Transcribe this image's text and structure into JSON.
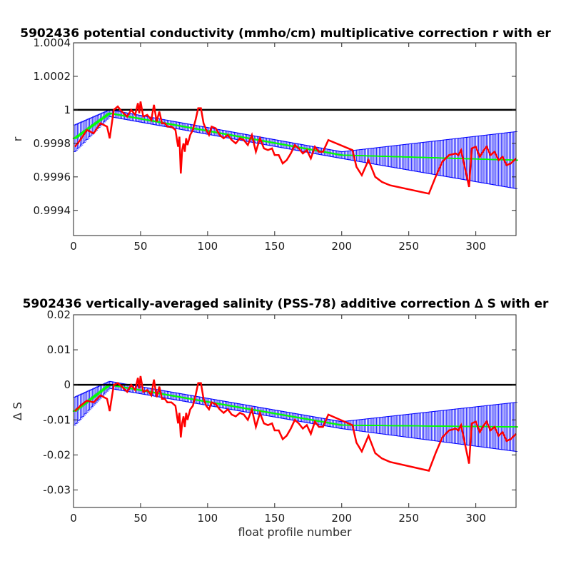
{
  "chart_data": [
    {
      "type": "line",
      "title": "5902436 potential conductivity (mmho/cm) multiplicative correction r with er",
      "xlabel": "",
      "ylabel": "r",
      "xlim": [
        0,
        330
      ],
      "ylim": [
        0.99925,
        1.0004
      ],
      "xticks": [
        0,
        50,
        100,
        150,
        200,
        250,
        300
      ],
      "yticks": [
        0.9994,
        0.9996,
        0.9998,
        1,
        1.0002,
        1.0004
      ],
      "ytick_labels": [
        "0.9994",
        "0.9996",
        "0.9998",
        "1",
        "1.0002",
        "1.0004"
      ],
      "reference_line": 1,
      "colors": {
        "mapped": "#ff0000",
        "fit": "#00ff00",
        "error_bars": "#0000ff",
        "reference": "#000000"
      },
      "series": [
        {
          "role": "mapped",
          "x": [
            1,
            5,
            10,
            15,
            20,
            25,
            27,
            30,
            33,
            36,
            40,
            43,
            46,
            48,
            49,
            50,
            52,
            55,
            58,
            60,
            62,
            64,
            66,
            68,
            70,
            73,
            76,
            78,
            79,
            80,
            81,
            82,
            83,
            84,
            85,
            87,
            89,
            91,
            93,
            95,
            97,
            99,
            101,
            103,
            106,
            109,
            112,
            115,
            118,
            121,
            124,
            127,
            130,
            133,
            136,
            139,
            142,
            145,
            148,
            150,
            153,
            156,
            159,
            162,
            165,
            168,
            171,
            174,
            177,
            180,
            183,
            186,
            190,
            208,
            211,
            215,
            220,
            225,
            230,
            236,
            265,
            270,
            275,
            280,
            285,
            287,
            289,
            292,
            295,
            297,
            300,
            303,
            306,
            308,
            311,
            314,
            317,
            320,
            323,
            326,
            330
          ],
          "y": [
            0.99978,
            0.99982,
            0.99988,
            0.99986,
            0.99992,
            0.9999,
            0.99983,
            1.0,
            1.00002,
            0.99999,
            0.99996,
            1.0,
            0.99997,
            1.00004,
            0.99998,
            1.00005,
            0.99996,
            0.99997,
            0.99994,
            1.00003,
            0.99993,
            0.99999,
            0.99992,
            0.99992,
            0.9999,
            0.9999,
            0.99988,
            0.99978,
            0.99984,
            0.99962,
            0.99976,
            0.9998,
            0.99975,
            0.99983,
            0.99979,
            0.99985,
            0.99988,
            0.99994,
            1.00001,
            1.00001,
            0.99992,
            0.99988,
            0.99985,
            0.9999,
            0.99989,
            0.99985,
            0.99983,
            0.99985,
            0.99982,
            0.9998,
            0.99983,
            0.99982,
            0.99979,
            0.99985,
            0.99975,
            0.99983,
            0.99977,
            0.99976,
            0.99977,
            0.99973,
            0.99973,
            0.99968,
            0.9997,
            0.99974,
            0.99979,
            0.99977,
            0.99974,
            0.99976,
            0.99971,
            0.99978,
            0.99975,
            0.99975,
            0.99982,
            0.99976,
            0.99966,
            0.99961,
            0.9997,
            0.9996,
            0.99957,
            0.99955,
            0.9995,
            0.9996,
            0.99969,
            0.99973,
            0.99974,
            0.99973,
            0.99976,
            0.99965,
            0.99954,
            0.99977,
            0.99978,
            0.99972,
            0.99976,
            0.99978,
            0.99973,
            0.99975,
            0.9997,
            0.99972,
            0.99967,
            0.99968,
            0.99971
          ]
        },
        {
          "role": "fit",
          "x": [
            1,
            27,
            200,
            330
          ],
          "y": [
            0.99983,
            0.99998,
            0.99973,
            0.9997
          ],
          "err": [
            8e-05,
            2e-05,
            2e-05,
            0.00017
          ]
        }
      ]
    },
    {
      "type": "line",
      "title": "5902436 vertically-averaged salinity (PSS-78) additive correction ∆ S with er",
      "xlabel": "float profile number",
      "ylabel": "∆ S",
      "xlim": [
        0,
        330
      ],
      "ylim": [
        -0.035,
        0.02
      ],
      "xticks": [
        0,
        50,
        100,
        150,
        200,
        250,
        300
      ],
      "yticks": [
        -0.03,
        -0.02,
        -0.01,
        0,
        0.01,
        0.02
      ],
      "ytick_labels": [
        "-0.03",
        "-0.02",
        "-0.01",
        "0",
        "0.01",
        "0.02"
      ],
      "reference_line": 0,
      "colors": {
        "mapped": "#ff0000",
        "fit": "#00ff00",
        "error_bars": "#0000ff",
        "reference": "#000000"
      },
      "series": [
        {
          "role": "mapped",
          "x": [
            1,
            5,
            10,
            15,
            20,
            25,
            27,
            30,
            33,
            36,
            40,
            43,
            46,
            48,
            49,
            50,
            52,
            55,
            58,
            60,
            62,
            64,
            66,
            68,
            70,
            73,
            76,
            78,
            79,
            80,
            81,
            82,
            83,
            84,
            85,
            87,
            89,
            91,
            93,
            95,
            97,
            99,
            101,
            103,
            106,
            109,
            112,
            115,
            118,
            121,
            124,
            127,
            130,
            133,
            136,
            139,
            142,
            145,
            148,
            150,
            153,
            156,
            159,
            162,
            165,
            168,
            171,
            174,
            177,
            180,
            183,
            186,
            190,
            208,
            211,
            215,
            220,
            225,
            230,
            236,
            265,
            270,
            275,
            280,
            285,
            287,
            289,
            292,
            295,
            297,
            300,
            303,
            306,
            308,
            311,
            314,
            317,
            320,
            323,
            326,
            330
          ],
          "y": [
            -0.0075,
            -0.006,
            -0.0045,
            -0.005,
            -0.003,
            -0.004,
            -0.0075,
            0.0,
            0.0005,
            -0.0005,
            -0.002,
            0.0,
            -0.0015,
            0.002,
            -0.001,
            0.0025,
            -0.002,
            -0.0015,
            -0.003,
            0.0015,
            -0.0035,
            -0.0005,
            -0.004,
            -0.004,
            -0.005,
            -0.005,
            -0.006,
            -0.011,
            -0.008,
            -0.015,
            -0.011,
            -0.009,
            -0.012,
            -0.008,
            -0.01,
            -0.007,
            -0.006,
            -0.003,
            0.0005,
            0.0005,
            -0.004,
            -0.006,
            -0.007,
            -0.005,
            -0.0055,
            -0.007,
            -0.008,
            -0.007,
            -0.0085,
            -0.009,
            -0.008,
            -0.0085,
            -0.01,
            -0.007,
            -0.012,
            -0.008,
            -0.011,
            -0.0115,
            -0.011,
            -0.013,
            -0.013,
            -0.0155,
            -0.0145,
            -0.0125,
            -0.01,
            -0.011,
            -0.0125,
            -0.0115,
            -0.014,
            -0.0105,
            -0.012,
            -0.012,
            -0.0085,
            -0.0115,
            -0.0165,
            -0.019,
            -0.0145,
            -0.0195,
            -0.021,
            -0.022,
            -0.0245,
            -0.0195,
            -0.015,
            -0.013,
            -0.0125,
            -0.013,
            -0.0115,
            -0.017,
            -0.0225,
            -0.011,
            -0.0105,
            -0.0135,
            -0.0115,
            -0.0105,
            -0.013,
            -0.012,
            -0.0145,
            -0.0135,
            -0.016,
            -0.0155,
            -0.014
          ]
        },
        {
          "role": "fit",
          "x": [
            1,
            27,
            200,
            330
          ],
          "y": [
            -0.0075,
            0.0,
            -0.0115,
            -0.012
          ],
          "err": [
            0.004,
            0.001,
            0.001,
            0.007
          ]
        }
      ]
    }
  ]
}
